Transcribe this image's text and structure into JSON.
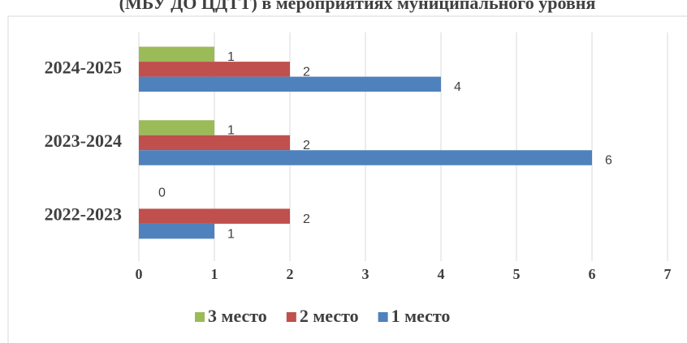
{
  "chart_data": {
    "type": "hbar",
    "title": "(МБУ ДО ЦДТТ) в мероприятиях муниципального уровня",
    "categories": [
      "2022-2023",
      "2023-2024",
      "2024-2025"
    ],
    "series": [
      {
        "name": "3 место",
        "color": "#9bbb59",
        "values": [
          0,
          1,
          1
        ]
      },
      {
        "name": "2 место",
        "color": "#c0504d",
        "values": [
          2,
          2,
          2
        ]
      },
      {
        "name": "1 место",
        "color": "#4f81bd",
        "values": [
          1,
          6,
          4
        ]
      }
    ],
    "xlim": [
      0,
      7
    ],
    "xticks": [
      0,
      1,
      2,
      3,
      4,
      5,
      6,
      7
    ],
    "grid": true,
    "legend": "bottom"
  }
}
